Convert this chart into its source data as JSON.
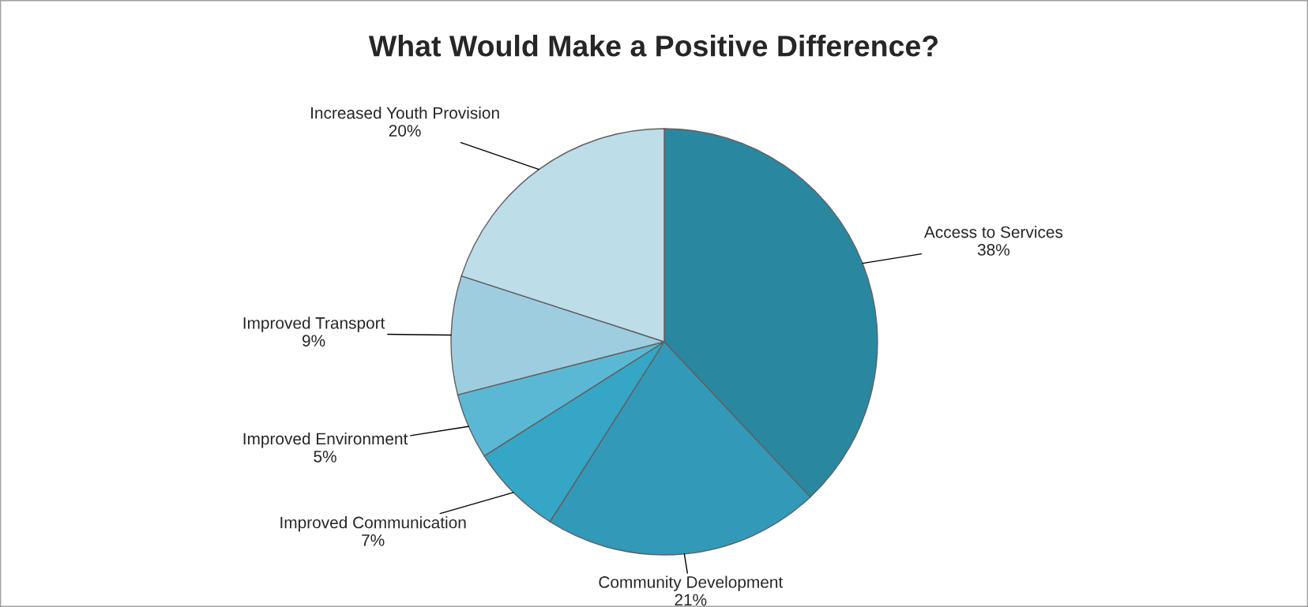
{
  "chart_data": {
    "type": "pie",
    "title": "What Would Make a Positive Difference?",
    "categories": [
      "Access to Services",
      "Community Development",
      "Improved Communication",
      "Improved Environment",
      "Improved Transport",
      "Increased Youth Provision"
    ],
    "values": [
      38,
      21,
      7,
      5,
      9,
      20
    ],
    "value_labels": [
      "38%",
      "21%",
      "7%",
      "5%",
      "9%",
      "20%"
    ],
    "colors": [
      "#2a87a0",
      "#3399b8",
      "#36a6c6",
      "#5bb8d5",
      "#9fcde0",
      "#bddde9"
    ]
  }
}
